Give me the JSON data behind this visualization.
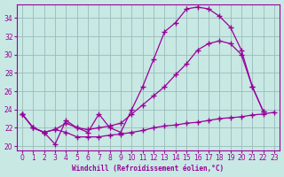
{
  "xlabel": "Windchill (Refroidissement éolien,°C)",
  "bg_color": "#c8e8e4",
  "line_color": "#990099",
  "grid_color": "#99bbbb",
  "xlim": [
    -0.5,
    23.5
  ],
  "ylim": [
    19.5,
    35.5
  ],
  "yticks": [
    20,
    22,
    24,
    26,
    28,
    30,
    32,
    34
  ],
  "xticks": [
    0,
    1,
    2,
    3,
    4,
    5,
    6,
    7,
    8,
    9,
    10,
    11,
    12,
    13,
    14,
    15,
    16,
    17,
    18,
    19,
    20,
    21,
    22,
    23
  ],
  "curve1_x": [
    0,
    1,
    2,
    3,
    4,
    5,
    6,
    7,
    8,
    9,
    10,
    11,
    12,
    13,
    14,
    15,
    16,
    17,
    18,
    19,
    20,
    21,
    22,
    23
  ],
  "curve1_y": [
    23.5,
    22.0,
    21.5,
    21.8,
    21.5,
    21.0,
    21.0,
    21.0,
    21.2,
    21.3,
    21.5,
    21.7,
    22.0,
    22.2,
    22.3,
    22.5,
    22.6,
    22.8,
    23.0,
    23.1,
    23.2,
    23.4,
    23.5,
    23.7
  ],
  "curve2_x": [
    0,
    1,
    2,
    3,
    4,
    5,
    6,
    7,
    8,
    9,
    10,
    11,
    12,
    13,
    14,
    15,
    16,
    17,
    18,
    19,
    20,
    21,
    22
  ],
  "curve2_y": [
    23.5,
    22.0,
    21.5,
    21.8,
    22.5,
    22.0,
    21.8,
    22.0,
    22.2,
    22.5,
    23.5,
    24.5,
    25.5,
    26.5,
    27.8,
    29.0,
    30.5,
    31.2,
    31.5,
    31.2,
    30.0,
    26.5,
    23.8
  ],
  "curve3_x": [
    0,
    1,
    2,
    3,
    4,
    5,
    6,
    7,
    8,
    9,
    10,
    11,
    12,
    13,
    14,
    15,
    16,
    17,
    18,
    19,
    20,
    21,
    22
  ],
  "curve3_y": [
    23.5,
    22.0,
    21.5,
    20.2,
    22.8,
    22.0,
    21.5,
    23.5,
    22.0,
    21.5,
    24.0,
    26.5,
    29.5,
    32.5,
    33.5,
    35.0,
    35.2,
    35.0,
    34.2,
    33.0,
    30.5,
    26.5,
    23.8
  ]
}
